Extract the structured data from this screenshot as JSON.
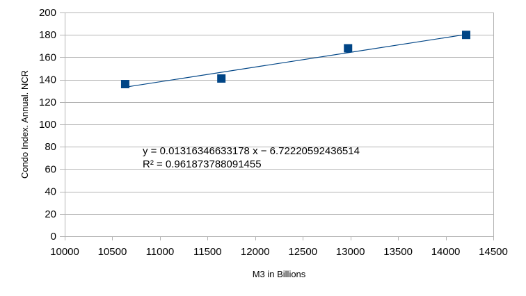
{
  "chart_data": {
    "type": "scatter",
    "title": "",
    "xlabel": "M3 in Billions",
    "ylabel": "Condo Index. Annual. NCR",
    "xlim": [
      10000,
      14500
    ],
    "ylim": [
      0,
      200
    ],
    "x_ticks": [
      10000,
      10500,
      11000,
      11500,
      12000,
      12500,
      13000,
      13500,
      14000,
      14500
    ],
    "y_ticks": [
      0,
      20,
      40,
      60,
      80,
      100,
      120,
      140,
      160,
      180,
      200
    ],
    "grid": {
      "horizontal": true,
      "vertical": false
    },
    "legend": "none",
    "series": [
      {
        "marker": "square",
        "color": "#004586",
        "points": [
          {
            "x": 10635,
            "y": 136
          },
          {
            "x": 11645,
            "y": 141
          },
          {
            "x": 12975,
            "y": 168
          },
          {
            "x": 14215,
            "y": 180
          }
        ]
      }
    ],
    "trendline": {
      "type": "linear",
      "slope": 0.01316346633178,
      "intercept": -6.72220592436514,
      "x_range": [
        10635,
        14215
      ],
      "color": "#004586",
      "equation_text": "y = 0.01316346633178 x − 6.72220592436514",
      "r2_text": "R² = 0.961873788091455"
    }
  }
}
